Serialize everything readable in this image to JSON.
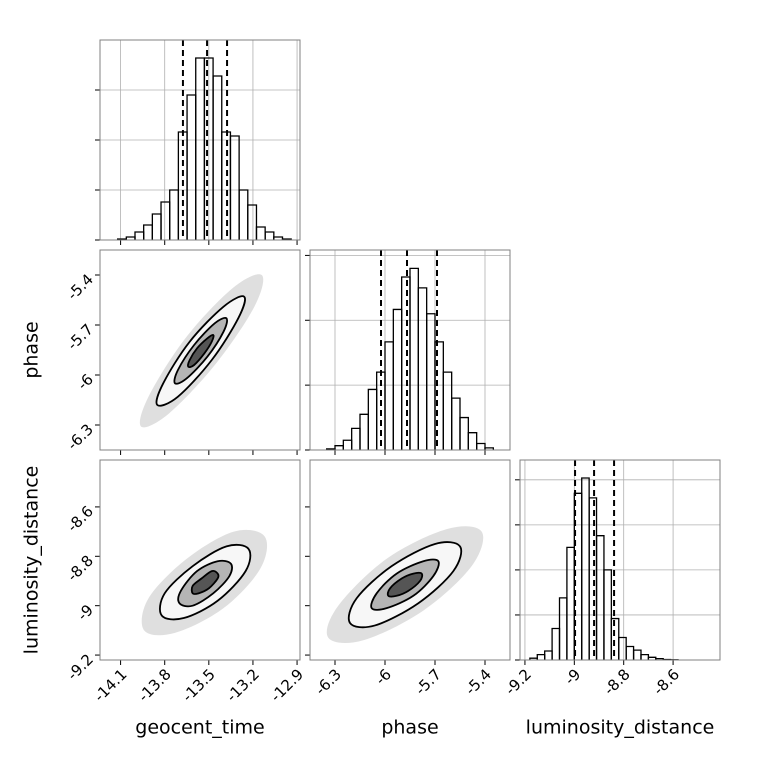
{
  "chart_data": {
    "type": "corner",
    "color": "#000000",
    "labels": [
      "geocent_time",
      "phase",
      "luminosity_distance"
    ],
    "lims": [
      [
        -14.24,
        -12.88
      ],
      [
        -6.45,
        -5.25
      ],
      [
        -9.22,
        -8.41
      ]
    ],
    "ticks": [
      [
        -14.1,
        -13.8,
        -13.5,
        -13.2,
        -12.9
      ],
      [
        -6.3,
        -6.0,
        -5.7,
        -5.4
      ],
      [
        -9.2,
        -9.0,
        -8.8,
        -8.6
      ]
    ],
    "histograms": [
      {
        "bins": [
          -14.12,
          -14.061,
          -14.002,
          -13.943,
          -13.884,
          -13.825,
          -13.766,
          -13.707,
          -13.648,
          -13.589,
          -13.53,
          -13.471,
          -13.412,
          -13.353,
          -13.294,
          -13.235,
          -13.176,
          -13.117,
          -13.058,
          -12.999,
          -12.94
        ],
        "counts": [
          10,
          30,
          80,
          150,
          260,
          380,
          500,
          1080,
          1450,
          1820,
          1820,
          1640,
          1080,
          1040,
          500,
          350,
          130,
          80,
          30,
          10
        ],
        "ylim": [
          0,
          2000
        ],
        "yticks": [
          0,
          500,
          1000,
          1500
        ],
        "quantiles": [
          -13.676,
          -13.512,
          -13.376
        ]
      },
      {
        "bins": [
          -6.35,
          -6.3,
          -6.25,
          -6.2,
          -6.15,
          -6.1,
          -6.05,
          -6.0,
          -5.95,
          -5.9,
          -5.85,
          -5.8,
          -5.75,
          -5.7,
          -5.65,
          -5.6,
          -5.55,
          -5.5,
          -5.45,
          -5.4,
          -5.35
        ],
        "counts": [
          10,
          40,
          90,
          200,
          330,
          560,
          720,
          1000,
          1300,
          1600,
          1680,
          1500,
          1260,
          1000,
          720,
          480,
          300,
          160,
          60,
          20
        ],
        "ylim": [
          0,
          1850
        ],
        "yticks": [
          0,
          600,
          1200,
          1800
        ],
        "quantiles": [
          -6.024,
          -5.868,
          -5.688
        ]
      },
      {
        "bins": [
          -9.18,
          -9.15,
          -9.12,
          -9.09,
          -9.06,
          -9.03,
          -9.0,
          -8.97,
          -8.94,
          -8.91,
          -8.88,
          -8.85,
          -8.82,
          -8.79,
          -8.76,
          -8.73,
          -8.7,
          -8.67,
          -8.64,
          -8.61,
          -8.58
        ],
        "counts": [
          20,
          60,
          100,
          350,
          690,
          1250,
          1850,
          2020,
          1800,
          1380,
          1000,
          460,
          250,
          150,
          110,
          60,
          30,
          15,
          5,
          2
        ],
        "ylim": [
          0,
          2220
        ],
        "yticks": [
          0,
          500,
          1000,
          1500,
          2000
        ],
        "quantiles": [
          -8.997,
          -8.92,
          -8.839
        ]
      }
    ],
    "pairs": [
      {
        "contours": [
          {
            "x": [
              -13.14,
              -13.19,
              -13.45,
              -13.77,
              -13.96,
              -13.91,
              -13.66,
              -13.34
            ],
            "y": [
              -5.4,
              -5.59,
              -5.93,
              -6.23,
              -6.31,
              -6.13,
              -5.78,
              -5.48
            ]
          },
          {
            "x": [
              -13.26,
              -13.3,
              -13.48,
              -13.71,
              -13.85,
              -13.81,
              -13.63,
              -13.4
            ],
            "y": [
              -5.53,
              -5.66,
              -5.91,
              -6.13,
              -6.18,
              -6.05,
              -5.8,
              -5.59
            ]
          },
          {
            "x": [
              -13.38,
              -13.4,
              -13.51,
              -13.65,
              -13.73,
              -13.71,
              -13.6,
              -13.46
            ],
            "y": [
              -5.66,
              -5.74,
              -5.89,
              -6.02,
              -6.05,
              -5.97,
              -5.82,
              -5.69
            ]
          },
          {
            "x": [
              -13.47,
              -13.48,
              -13.53,
              -13.6,
              -13.64,
              -13.63,
              -13.58,
              -13.51
            ],
            "y": [
              -5.76,
              -5.8,
              -5.87,
              -5.94,
              -5.95,
              -5.91,
              -5.84,
              -5.78
            ]
          }
        ]
      },
      {
        "contours": [
          {
            "x": [
              -13.12,
              -13.15,
              -13.4,
              -13.73,
              -13.94,
              -13.91,
              -13.65,
              -13.33
            ],
            "y": [
              -8.72,
              -8.85,
              -9.01,
              -9.11,
              -9.1,
              -8.97,
              -8.81,
              -8.7
            ]
          },
          {
            "x": [
              -13.23,
              -13.25,
              -13.44,
              -13.67,
              -13.82,
              -13.8,
              -13.61,
              -13.38
            ],
            "y": [
              -8.77,
              -8.86,
              -8.98,
              -9.05,
              -9.04,
              -8.95,
              -8.84,
              -8.76
            ]
          },
          {
            "x": [
              -13.35,
              -13.36,
              -13.47,
              -13.61,
              -13.7,
              -13.69,
              -13.58,
              -13.44
            ],
            "y": [
              -8.83,
              -8.88,
              -8.95,
              -9.0,
              -8.99,
              -8.94,
              -8.86,
              -8.82
            ]
          },
          {
            "x": [
              -13.44,
              -13.44,
              -13.5,
              -13.57,
              -13.61,
              -13.61,
              -13.55,
              -13.48
            ],
            "y": [
              -8.87,
              -8.89,
              -8.93,
              -8.95,
              -8.95,
              -8.92,
              -8.89,
              -8.86
            ]
          }
        ]
      },
      {
        "contours": [
          {
            "x": [
              -5.42,
              -5.48,
              -5.77,
              -6.13,
              -6.34,
              -6.28,
              -5.99,
              -5.63
            ],
            "y": [
              -8.7,
              -8.84,
              -9.02,
              -9.14,
              -9.13,
              -9.0,
              -8.81,
              -8.69
            ]
          },
          {
            "x": [
              -5.55,
              -5.59,
              -5.8,
              -6.06,
              -6.21,
              -6.17,
              -5.96,
              -5.7
            ],
            "y": [
              -8.76,
              -8.86,
              -8.99,
              -9.08,
              -9.07,
              -8.97,
              -8.84,
              -8.75
            ]
          },
          {
            "x": [
              -5.68,
              -5.71,
              -5.83,
              -5.99,
              -6.08,
              -6.05,
              -5.93,
              -5.77
            ],
            "y": [
              -8.82,
              -8.88,
              -8.96,
              -9.01,
              -9.01,
              -8.95,
              -8.87,
              -8.82
            ]
          },
          {
            "x": [
              -5.78,
              -5.79,
              -5.86,
              -5.93,
              -5.98,
              -5.97,
              -5.9,
              -5.83
            ],
            "y": [
              -8.87,
              -8.9,
              -8.94,
              -8.96,
              -8.96,
              -8.93,
              -8.89,
              -8.87
            ]
          }
        ]
      }
    ]
  }
}
